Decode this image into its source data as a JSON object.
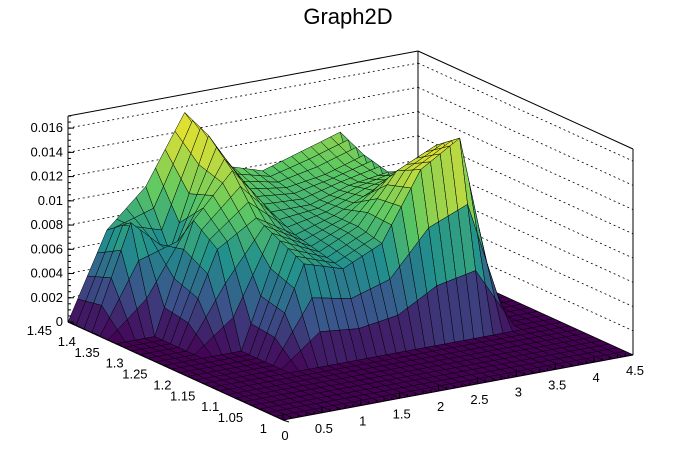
{
  "chart_data": {
    "type": "surface3d",
    "title": "Graph2D",
    "x_axis": {
      "ticks": [
        "0",
        "0.5",
        "1",
        "1.5",
        "2",
        "2.5",
        "3",
        "3.5",
        "4",
        "4.5"
      ],
      "range": [
        0,
        4.5
      ]
    },
    "y_axis": {
      "ticks": [
        "1",
        "1.05",
        "1.1",
        "1.15",
        "1.2",
        "1.25",
        "1.3",
        "1.35",
        "1.4",
        "1.45"
      ],
      "range": [
        1,
        1.45
      ]
    },
    "z_axis": {
      "ticks": [
        "0",
        "0.002",
        "0.004",
        "0.006",
        "0.008",
        "0.01",
        "0.012",
        "0.014",
        "0.016"
      ],
      "range": [
        0,
        0.017
      ]
    },
    "grid": true,
    "colormap": "viridis",
    "x_grid": [
      0,
      0.5,
      1,
      1.5,
      2,
      2.5,
      3,
      3.5,
      4,
      4.5
    ],
    "y_grid": [
      1,
      1.05,
      1.1,
      1.15,
      1.2,
      1.25,
      1.3,
      1.35,
      1.4,
      1.45
    ],
    "z_values": [
      [
        0,
        0,
        0,
        0,
        0,
        0,
        0,
        0,
        0,
        0
      ],
      [
        0,
        0,
        0,
        0,
        0,
        0,
        0,
        0,
        0,
        0
      ],
      [
        0,
        0,
        0,
        0,
        0,
        0,
        0,
        0,
        0,
        0
      ],
      [
        0,
        0,
        0,
        0,
        0,
        0,
        0,
        0,
        0,
        0
      ],
      [
        0,
        0,
        0,
        0.0075,
        0.0065,
        0.008,
        0.0135,
        0.0155,
        0,
        0
      ],
      [
        0,
        0,
        0,
        0.0085,
        0.007,
        0.0085,
        0.0125,
        0.014,
        0,
        0
      ],
      [
        0,
        0,
        0.0075,
        0.0095,
        0.0075,
        0.0085,
        0.01,
        0.011,
        0,
        0
      ],
      [
        0,
        0,
        0.009,
        0.0125,
        0.0085,
        0.0085,
        0.0095,
        0.01,
        0,
        0
      ],
      [
        0,
        0.0085,
        0.0055,
        0.0145,
        0.0095,
        0.009,
        0.0095,
        0.0105,
        0,
        0
      ],
      [
        0,
        0.007,
        0.01,
        0.0155,
        0.0105,
        0.0095,
        0.0105,
        0.0115,
        0,
        0
      ]
    ]
  }
}
